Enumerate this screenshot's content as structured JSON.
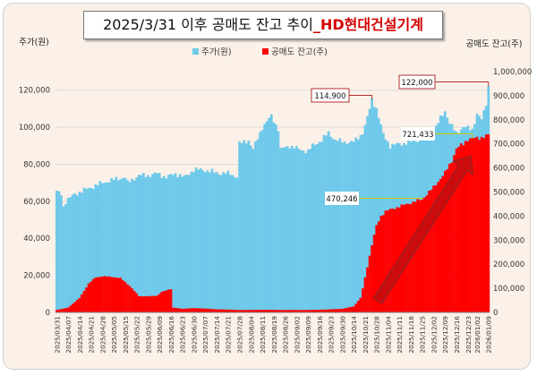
{
  "title": {
    "main": "2025/3/31 이후 공매도 잔고 추이",
    "accent": "_HD현대건설기계"
  },
  "chart_data": {
    "type": "bar",
    "y_left_label": "주가(원)",
    "y_right_label": "공매도 잔고(주)",
    "y_left_ticks": [
      "0",
      "20,000",
      "40,000",
      "60,000",
      "80,000",
      "100,000",
      "120,000"
    ],
    "y_right_ticks": [
      "0",
      "100,000",
      "200,000",
      "300,000",
      "400,000",
      "500,000",
      "600,000",
      "700,000",
      "800,000",
      "900,000",
      "1,000,000"
    ],
    "ylim_left": [
      0,
      130000
    ],
    "ylim_right": [
      0,
      1000000
    ],
    "legend_placement": "top-center",
    "grid": "horizontal",
    "series": [
      {
        "name": "주가(원)",
        "color": "#6ec9ea",
        "axis": "left",
        "points": [
          [
            0,
            65000
          ],
          [
            2,
            64000
          ],
          [
            3,
            57000
          ],
          [
            4,
            60000
          ],
          [
            8,
            64000
          ],
          [
            14,
            67000
          ],
          [
            20,
            70000
          ],
          [
            26,
            72000
          ],
          [
            30,
            73000
          ],
          [
            31,
            70000
          ],
          [
            36,
            74000
          ],
          [
            40,
            74000
          ],
          [
            44,
            75000
          ],
          [
            48,
            73000
          ],
          [
            52,
            75000
          ],
          [
            56,
            73000
          ],
          [
            60,
            77000
          ],
          [
            64,
            77000
          ],
          [
            68,
            76000
          ],
          [
            72,
            75000
          ],
          [
            76,
            75000
          ],
          [
            79,
            73000
          ],
          [
            80,
            91000
          ],
          [
            84,
            93000
          ],
          [
            86,
            88000
          ],
          [
            90,
            100000
          ],
          [
            94,
            106000
          ],
          [
            97,
            99000
          ],
          [
            98,
            88000
          ],
          [
            102,
            90000
          ],
          [
            106,
            88000
          ],
          [
            110,
            87000
          ],
          [
            112,
            90000
          ],
          [
            116,
            93000
          ],
          [
            119,
            97000
          ],
          [
            122,
            93000
          ],
          [
            126,
            92000
          ],
          [
            130,
            92000
          ],
          [
            134,
            97000
          ],
          [
            136,
            105000
          ],
          [
            138,
            115000
          ],
          [
            140,
            110000
          ],
          [
            143,
            96000
          ],
          [
            146,
            90000
          ],
          [
            150,
            91000
          ],
          [
            155,
            92000
          ],
          [
            160,
            94000
          ],
          [
            165,
            97000
          ],
          [
            168,
            105000
          ],
          [
            170,
            109000
          ],
          [
            172,
            102000
          ],
          [
            175,
            97000
          ],
          [
            178,
            100000
          ],
          [
            182,
            99000
          ],
          [
            184,
            107000
          ],
          [
            186,
            104000
          ],
          [
            188,
            113000
          ],
          [
            189,
            122000
          ]
        ]
      },
      {
        "name": "공매도 잔고(주)",
        "color": "#ff0000",
        "axis": "right",
        "points": [
          [
            0,
            10000
          ],
          [
            5,
            20000
          ],
          [
            10,
            60000
          ],
          [
            14,
            120000
          ],
          [
            17,
            145000
          ],
          [
            20,
            150000
          ],
          [
            24,
            148000
          ],
          [
            28,
            142000
          ],
          [
            32,
            110000
          ],
          [
            36,
            68000
          ],
          [
            40,
            67000
          ],
          [
            44,
            70000
          ],
          [
            46,
            85000
          ],
          [
            50,
            98000
          ],
          [
            51,
            20000
          ],
          [
            55,
            15000
          ],
          [
            60,
            18000
          ],
          [
            65,
            16000
          ],
          [
            70,
            13000
          ],
          [
            75,
            12000
          ],
          [
            80,
            10000
          ],
          [
            85,
            10000
          ],
          [
            90,
            11000
          ],
          [
            100,
            10000
          ],
          [
            110,
            10000
          ],
          [
            118,
            12000
          ],
          [
            125,
            15000
          ],
          [
            130,
            25000
          ],
          [
            133,
            60000
          ],
          [
            134,
            100000
          ],
          [
            136,
            190000
          ],
          [
            138,
            280000
          ],
          [
            140,
            360000
          ],
          [
            142,
            400000
          ],
          [
            144,
            420000
          ],
          [
            150,
            440000
          ],
          [
            155,
            455000
          ],
          [
            160,
            470000
          ],
          [
            165,
            520000
          ],
          [
            170,
            580000
          ],
          [
            173,
            630000
          ],
          [
            175,
            680000
          ],
          [
            178,
            700000
          ],
          [
            180,
            720000
          ],
          [
            182,
            721433
          ],
          [
            184,
            724000
          ],
          [
            186,
            728000
          ],
          [
            189,
            735000
          ]
        ]
      }
    ],
    "annotations": [
      {
        "text": "114,900",
        "target_series": "주가(원)",
        "x_index": 138
      },
      {
        "text": "122,000",
        "target_series": "주가(원)",
        "x_index": 189
      },
      {
        "text": "721,433",
        "target_series": "공매도 잔고(주)",
        "x_index": 182
      },
      {
        "text": "470,246",
        "target_series": "공매도 잔고(주)",
        "x_index": 160
      }
    ],
    "x_count": 190,
    "x_ticks": [
      {
        "i": 0,
        "label": "2025/03/31"
      },
      {
        "i": 5,
        "label": "2025/04/07"
      },
      {
        "i": 10,
        "label": "2025/04/14"
      },
      {
        "i": 15,
        "label": "2025/04/21"
      },
      {
        "i": 20,
        "label": "2025/04/28"
      },
      {
        "i": 25,
        "label": "2025/05/05"
      },
      {
        "i": 30,
        "label": "2025/05/15"
      },
      {
        "i": 35,
        "label": "2025/05/22"
      },
      {
        "i": 40,
        "label": "2025/05/29"
      },
      {
        "i": 45,
        "label": "2025/06/09"
      },
      {
        "i": 50,
        "label": "2025/06/16"
      },
      {
        "i": 55,
        "label": "2025/06/23"
      },
      {
        "i": 60,
        "label": "2025/06/30"
      },
      {
        "i": 65,
        "label": "2025/07/07"
      },
      {
        "i": 70,
        "label": "2025/07/14"
      },
      {
        "i": 75,
        "label": "2025/07/21"
      },
      {
        "i": 80,
        "label": "2025/07/28"
      },
      {
        "i": 85,
        "label": "2025/08/04"
      },
      {
        "i": 90,
        "label": "2025/08/11"
      },
      {
        "i": 95,
        "label": "2025/08/19"
      },
      {
        "i": 100,
        "label": "2025/08/26"
      },
      {
        "i": 105,
        "label": "2025/09/02"
      },
      {
        "i": 110,
        "label": "2025/09/09"
      },
      {
        "i": 115,
        "label": "2025/09/16"
      },
      {
        "i": 120,
        "label": "2025/09/23"
      },
      {
        "i": 125,
        "label": "2025/09/30"
      },
      {
        "i": 130,
        "label": "2025/10/14"
      },
      {
        "i": 135,
        "label": "2025/10/21"
      },
      {
        "i": 140,
        "label": "2025/10/28"
      },
      {
        "i": 145,
        "label": "2025/11/04"
      },
      {
        "i": 150,
        "label": "2025/11/11"
      },
      {
        "i": 155,
        "label": "2025/11/18"
      },
      {
        "i": 160,
        "label": "2025/11/25"
      },
      {
        "i": 165,
        "label": "2025/12/02"
      },
      {
        "i": 170,
        "label": "2025/12/09"
      },
      {
        "i": 175,
        "label": "2025/12/16"
      },
      {
        "i": 180,
        "label": "2025/12/23"
      },
      {
        "i": 184,
        "label": "2026/01/02"
      },
      {
        "i": 189,
        "label": "2026/01/09"
      }
    ]
  }
}
